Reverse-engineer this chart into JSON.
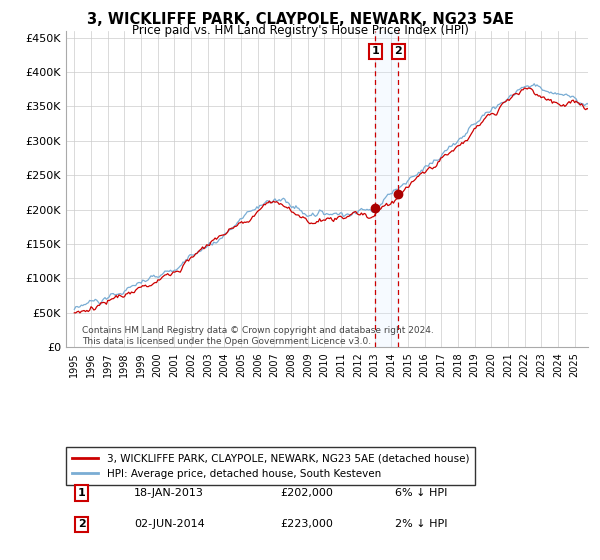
{
  "title": "3, WICKLIFFE PARK, CLAYPOLE, NEWARK, NG23 5AE",
  "subtitle": "Price paid vs. HM Land Registry's House Price Index (HPI)",
  "legend_line1": "3, WICKLIFFE PARK, CLAYPOLE, NEWARK, NG23 5AE (detached house)",
  "legend_line2": "HPI: Average price, detached house, South Kesteven",
  "annotation1_label": "1",
  "annotation1_date": "18-JAN-2013",
  "annotation1_price": "£202,000",
  "annotation1_hpi": "6% ↓ HPI",
  "annotation2_label": "2",
  "annotation2_date": "02-JUN-2014",
  "annotation2_price": "£223,000",
  "annotation2_hpi": "2% ↓ HPI",
  "footer": "Contains HM Land Registry data © Crown copyright and database right 2024.\nThis data is licensed under the Open Government Licence v3.0.",
  "hpi_color": "#7aadd4",
  "price_color": "#cc0000",
  "vline_color": "#cc0000",
  "vshade_color": "#ddeeff",
  "ylim": [
    0,
    460000
  ],
  "yticks": [
    0,
    50000,
    100000,
    150000,
    200000,
    250000,
    300000,
    350000,
    400000,
    450000
  ],
  "sale1_year": 2013.05,
  "sale2_year": 2014.42,
  "sale1_price": 202000,
  "sale2_price": 223000
}
